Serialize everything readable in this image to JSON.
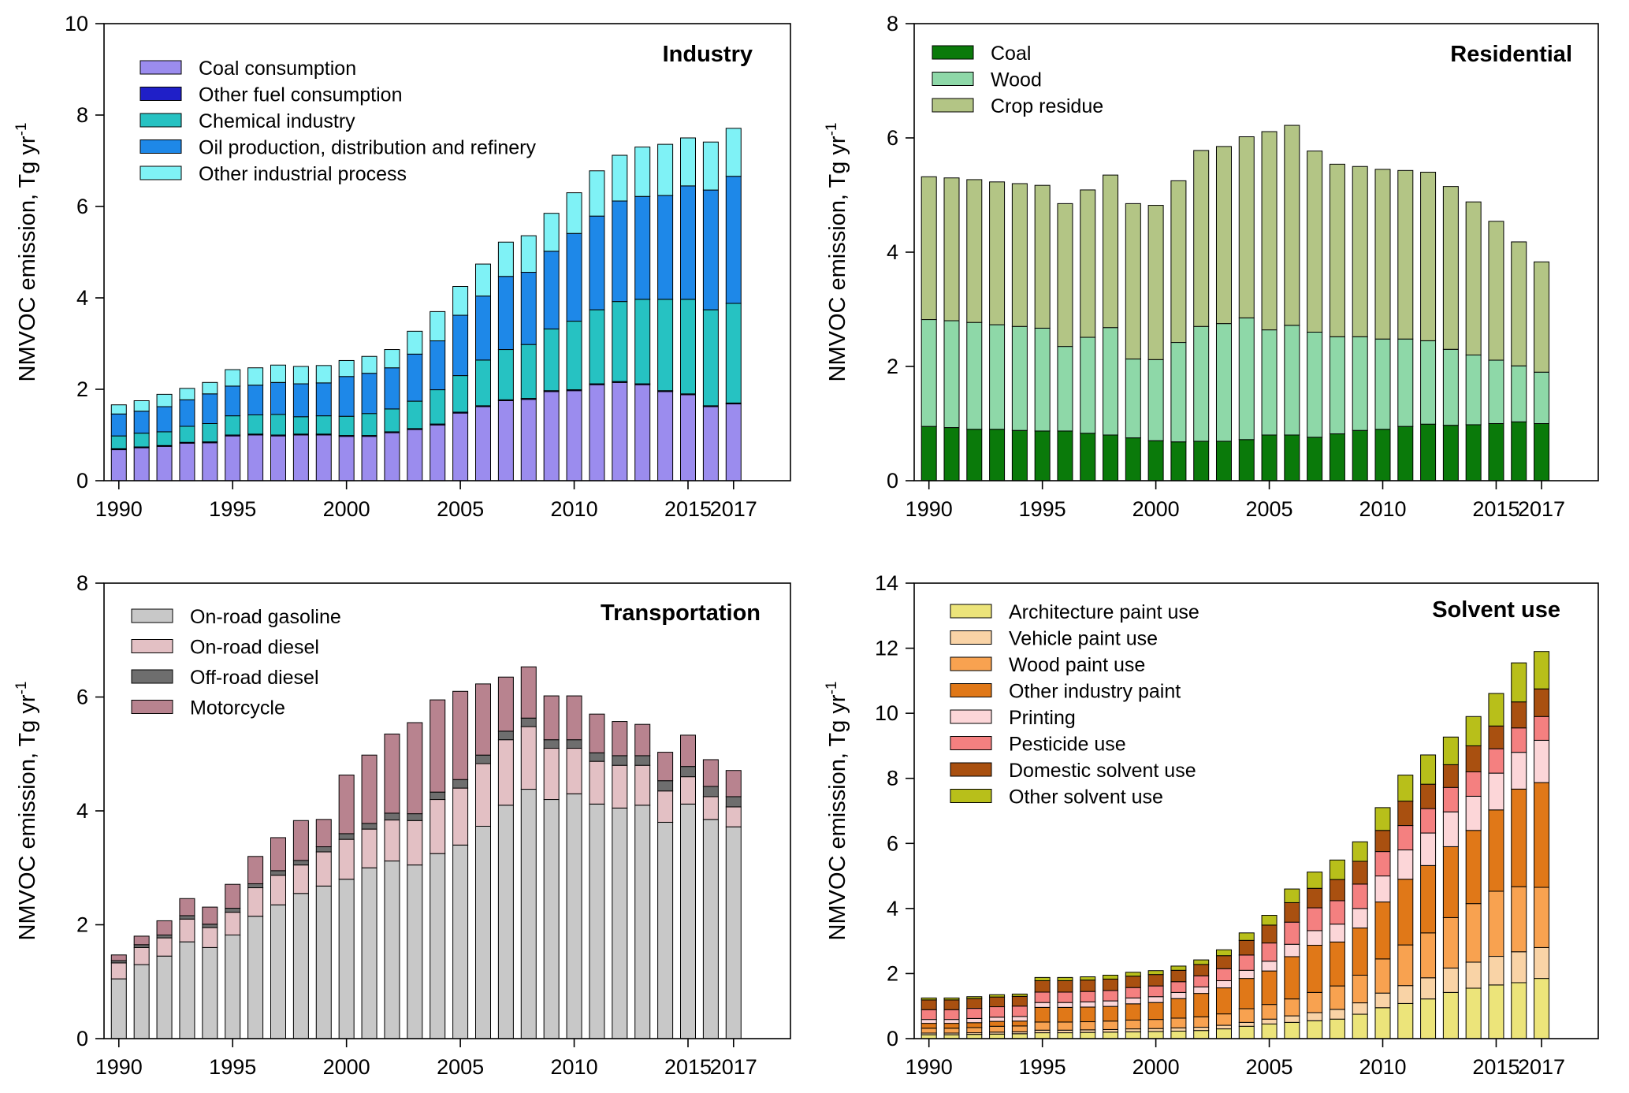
{
  "chart_data": [
    {
      "type": "bar",
      "stacked": true,
      "panel": "top-left",
      "title": "Industry",
      "ylabel": "NMVOC emission, Tg yr",
      "ylabel_sup": "-1",
      "ylim": [
        0,
        10
      ],
      "yticks": [
        0,
        2,
        4,
        6,
        8,
        10
      ],
      "xticks": [
        "1990",
        "1995",
        "2000",
        "2005",
        "2010",
        "2015",
        "2017"
      ],
      "x": [
        1990,
        1991,
        1992,
        1993,
        1994,
        1995,
        1996,
        1997,
        1998,
        1999,
        2000,
        2001,
        2002,
        2003,
        2004,
        2005,
        2006,
        2007,
        2008,
        2009,
        2010,
        2011,
        2012,
        2013,
        2014,
        2015,
        2016,
        2017
      ],
      "legend_position": "top-left",
      "series": [
        {
          "name": "Coal consumption",
          "color": "#9b8cee",
          "values": [
            0.68,
            0.72,
            0.75,
            0.82,
            0.83,
            0.98,
            1.0,
            0.98,
            1.0,
            1.0,
            0.97,
            0.97,
            1.05,
            1.12,
            1.22,
            1.48,
            1.62,
            1.75,
            1.78,
            1.95,
            1.97,
            2.1,
            2.15,
            2.1,
            1.95,
            1.88,
            1.62,
            1.68
          ]
        },
        {
          "name": "Other fuel consumption",
          "color": "#1f1fc8",
          "values": [
            0.02,
            0.02,
            0.02,
            0.02,
            0.02,
            0.02,
            0.02,
            0.02,
            0.02,
            0.02,
            0.02,
            0.02,
            0.02,
            0.02,
            0.02,
            0.02,
            0.02,
            0.02,
            0.02,
            0.02,
            0.02,
            0.02,
            0.02,
            0.02,
            0.02,
            0.02,
            0.02,
            0.02
          ]
        },
        {
          "name": "Chemical industry",
          "color": "#26c2c2",
          "values": [
            0.28,
            0.3,
            0.3,
            0.35,
            0.4,
            0.42,
            0.42,
            0.45,
            0.38,
            0.4,
            0.42,
            0.48,
            0.5,
            0.6,
            0.75,
            0.8,
            1.0,
            1.1,
            1.18,
            1.35,
            1.5,
            1.62,
            1.75,
            1.85,
            2.0,
            2.07,
            2.1,
            2.18
          ]
        },
        {
          "name": "Oil production, distribution and refinery",
          "color": "#1e88e8",
          "values": [
            0.48,
            0.48,
            0.55,
            0.58,
            0.65,
            0.65,
            0.65,
            0.7,
            0.72,
            0.72,
            0.87,
            0.88,
            0.9,
            1.03,
            1.07,
            1.32,
            1.4,
            1.6,
            1.58,
            1.7,
            1.92,
            2.05,
            2.2,
            2.25,
            2.27,
            2.48,
            2.62,
            2.78
          ]
        },
        {
          "name": "Other industrial process",
          "color": "#7ff2f6",
          "values": [
            0.2,
            0.23,
            0.27,
            0.25,
            0.25,
            0.36,
            0.38,
            0.38,
            0.38,
            0.38,
            0.35,
            0.37,
            0.4,
            0.5,
            0.64,
            0.63,
            0.7,
            0.75,
            0.8,
            0.83,
            0.89,
            0.99,
            1.0,
            1.08,
            1.12,
            1.05,
            1.05,
            1.05
          ]
        }
      ]
    },
    {
      "type": "bar",
      "stacked": true,
      "panel": "top-right",
      "title": "Residential",
      "ylabel": "NMVOC emission, Tg yr",
      "ylabel_sup": "-1",
      "ylim": [
        0,
        8
      ],
      "yticks": [
        0,
        2,
        4,
        6,
        8
      ],
      "xticks": [
        "1990",
        "1995",
        "2000",
        "2005",
        "2010",
        "2015",
        "2017"
      ],
      "x": [
        1990,
        1991,
        1992,
        1993,
        1994,
        1995,
        1996,
        1997,
        1998,
        1999,
        2000,
        2001,
        2002,
        2003,
        2004,
        2005,
        2006,
        2007,
        2008,
        2009,
        2010,
        2011,
        2012,
        2013,
        2014,
        2015,
        2016,
        2017
      ],
      "legend_position": "top-left",
      "series": [
        {
          "name": "Coal",
          "color": "#0a7a0a",
          "values": [
            0.95,
            0.93,
            0.9,
            0.9,
            0.88,
            0.87,
            0.87,
            0.83,
            0.8,
            0.75,
            0.7,
            0.68,
            0.69,
            0.69,
            0.72,
            0.8,
            0.8,
            0.76,
            0.82,
            0.88,
            0.9,
            0.95,
            0.99,
            0.97,
            0.98,
            1.0,
            1.03,
            1.0
          ]
        },
        {
          "name": "Wood",
          "color": "#8ed8a8",
          "values": [
            1.87,
            1.87,
            1.87,
            1.83,
            1.82,
            1.8,
            1.48,
            1.68,
            1.88,
            1.38,
            1.42,
            1.74,
            2.01,
            2.06,
            2.13,
            1.84,
            1.92,
            1.84,
            1.7,
            1.64,
            1.58,
            1.53,
            1.46,
            1.33,
            1.22,
            1.11,
            0.98,
            0.9
          ]
        },
        {
          "name": "Crop residue",
          "color": "#b3c585",
          "values": [
            2.5,
            2.5,
            2.5,
            2.5,
            2.5,
            2.5,
            2.5,
            2.58,
            2.67,
            2.72,
            2.7,
            2.83,
            3.08,
            3.1,
            3.17,
            3.47,
            3.5,
            3.17,
            3.02,
            2.98,
            2.97,
            2.95,
            2.95,
            2.85,
            2.68,
            2.43,
            2.17,
            1.93
          ]
        }
      ]
    },
    {
      "type": "bar",
      "stacked": true,
      "panel": "bottom-left",
      "title": "Transportation",
      "ylabel": "NMVOC emission, Tg yr",
      "ylabel_sup": "-1",
      "ylim": [
        0,
        8
      ],
      "yticks": [
        0,
        2,
        4,
        6,
        8
      ],
      "xticks": [
        "1990",
        "1995",
        "2000",
        "2005",
        "2010",
        "2015",
        "2017"
      ],
      "x": [
        1990,
        1991,
        1992,
        1993,
        1994,
        1995,
        1996,
        1997,
        1998,
        1999,
        2000,
        2001,
        2002,
        2003,
        2004,
        2005,
        2006,
        2007,
        2008,
        2009,
        2010,
        2011,
        2012,
        2013,
        2014,
        2015,
        2016,
        2017
      ],
      "legend_position": "top-left",
      "series": [
        {
          "name": "On-road gasoline",
          "color": "#c8c8c8",
          "values": [
            1.05,
            1.3,
            1.45,
            1.7,
            1.6,
            1.82,
            2.15,
            2.35,
            2.55,
            2.68,
            2.8,
            3.0,
            3.12,
            3.05,
            3.25,
            3.4,
            3.73,
            4.1,
            4.38,
            4.2,
            4.3,
            4.12,
            4.05,
            4.1,
            3.8,
            4.12,
            3.85,
            3.72
          ]
        },
        {
          "name": "On-road diesel",
          "color": "#e3c0c4",
          "values": [
            0.28,
            0.3,
            0.32,
            0.4,
            0.35,
            0.4,
            0.5,
            0.52,
            0.5,
            0.6,
            0.7,
            0.68,
            0.72,
            0.78,
            0.95,
            1.0,
            1.1,
            1.15,
            1.1,
            0.9,
            0.8,
            0.75,
            0.75,
            0.7,
            0.55,
            0.48,
            0.4,
            0.35
          ]
        },
        {
          "name": "Off-road diesel",
          "color": "#6e6e6e",
          "values": [
            0.04,
            0.05,
            0.05,
            0.06,
            0.06,
            0.07,
            0.07,
            0.08,
            0.08,
            0.09,
            0.1,
            0.1,
            0.12,
            0.12,
            0.13,
            0.15,
            0.15,
            0.15,
            0.15,
            0.15,
            0.15,
            0.15,
            0.17,
            0.17,
            0.18,
            0.18,
            0.18,
            0.18
          ]
        },
        {
          "name": "Motorcycle",
          "color": "#b8838f",
          "values": [
            0.1,
            0.15,
            0.25,
            0.3,
            0.3,
            0.42,
            0.48,
            0.58,
            0.7,
            0.48,
            1.03,
            1.2,
            1.39,
            1.6,
            1.62,
            1.55,
            1.25,
            0.95,
            0.9,
            0.77,
            0.77,
            0.68,
            0.6,
            0.55,
            0.5,
            0.55,
            0.47,
            0.46
          ]
        }
      ]
    },
    {
      "type": "bar",
      "stacked": true,
      "panel": "bottom-right",
      "title": "Solvent use",
      "ylabel": "NMVOC emission, Tg yr",
      "ylabel_sup": "-1",
      "ylim": [
        0,
        14
      ],
      "yticks": [
        0,
        2,
        4,
        6,
        8,
        10,
        12,
        14
      ],
      "xticks": [
        "1990",
        "1995",
        "2000",
        "2005",
        "2010",
        "2015",
        "2017"
      ],
      "x": [
        1990,
        1991,
        1992,
        1993,
        1994,
        1995,
        1996,
        1997,
        1998,
        1999,
        2000,
        2001,
        2002,
        2003,
        2004,
        2005,
        2006,
        2007,
        2008,
        2009,
        2010,
        2011,
        2012,
        2013,
        2014,
        2015,
        2016,
        2017
      ],
      "legend_position": "top-left",
      "series": [
        {
          "name": "Architecture paint use",
          "color": "#ece47a",
          "values": [
            0.12,
            0.12,
            0.13,
            0.14,
            0.15,
            0.18,
            0.18,
            0.19,
            0.2,
            0.21,
            0.22,
            0.23,
            0.25,
            0.3,
            0.38,
            0.45,
            0.5,
            0.55,
            0.6,
            0.75,
            0.95,
            1.08,
            1.22,
            1.42,
            1.55,
            1.65,
            1.72,
            1.85
          ]
        },
        {
          "name": "Vehicle paint use",
          "color": "#f9d3a6",
          "values": [
            0.05,
            0.05,
            0.05,
            0.06,
            0.06,
            0.08,
            0.08,
            0.08,
            0.08,
            0.09,
            0.09,
            0.1,
            0.1,
            0.11,
            0.12,
            0.15,
            0.2,
            0.25,
            0.3,
            0.35,
            0.45,
            0.55,
            0.65,
            0.75,
            0.8,
            0.88,
            0.95,
            0.95
          ]
        },
        {
          "name": "Wood paint use",
          "color": "#f8a250",
          "values": [
            0.15,
            0.15,
            0.16,
            0.18,
            0.18,
            0.25,
            0.25,
            0.25,
            0.26,
            0.27,
            0.28,
            0.3,
            0.32,
            0.35,
            0.42,
            0.45,
            0.52,
            0.62,
            0.72,
            0.85,
            1.05,
            1.25,
            1.38,
            1.55,
            1.8,
            2.0,
            2.0,
            1.85
          ]
        },
        {
          "name": "Other industry paint",
          "color": "#e07818",
          "values": [
            0.15,
            0.15,
            0.15,
            0.15,
            0.15,
            0.45,
            0.45,
            0.45,
            0.45,
            0.5,
            0.52,
            0.6,
            0.72,
            0.8,
            0.93,
            1.03,
            1.3,
            1.45,
            1.35,
            1.45,
            1.75,
            2.02,
            2.07,
            2.18,
            2.25,
            2.5,
            3.0,
            3.22
          ]
        },
        {
          "name": "Printing",
          "color": "#fcd6d8",
          "values": [
            0.12,
            0.12,
            0.13,
            0.13,
            0.14,
            0.15,
            0.15,
            0.16,
            0.17,
            0.18,
            0.18,
            0.19,
            0.2,
            0.22,
            0.25,
            0.3,
            0.38,
            0.45,
            0.55,
            0.6,
            0.8,
            0.9,
            1.0,
            1.07,
            1.05,
            1.13,
            1.13,
            1.3
          ]
        },
        {
          "name": "Pesticide use",
          "color": "#f48080",
          "values": [
            0.3,
            0.3,
            0.31,
            0.32,
            0.32,
            0.32,
            0.32,
            0.32,
            0.32,
            0.32,
            0.33,
            0.33,
            0.34,
            0.37,
            0.47,
            0.56,
            0.68,
            0.7,
            0.72,
            0.75,
            0.75,
            0.75,
            0.75,
            0.75,
            0.75,
            0.75,
            0.75,
            0.73
          ]
        },
        {
          "name": "Domestic solvent use",
          "color": "#a95010",
          "values": [
            0.3,
            0.3,
            0.3,
            0.3,
            0.3,
            0.35,
            0.35,
            0.35,
            0.35,
            0.35,
            0.35,
            0.35,
            0.35,
            0.4,
            0.45,
            0.55,
            0.6,
            0.6,
            0.65,
            0.7,
            0.65,
            0.75,
            0.75,
            0.7,
            0.8,
            0.7,
            0.8,
            0.85
          ]
        },
        {
          "name": "Other solvent use",
          "color": "#b8bf1a",
          "values": [
            0.06,
            0.06,
            0.06,
            0.07,
            0.07,
            0.1,
            0.1,
            0.1,
            0.12,
            0.12,
            0.12,
            0.13,
            0.14,
            0.18,
            0.23,
            0.3,
            0.42,
            0.5,
            0.6,
            0.6,
            0.7,
            0.8,
            0.9,
            0.85,
            0.9,
            1.0,
            1.2,
            1.15
          ]
        }
      ]
    }
  ]
}
